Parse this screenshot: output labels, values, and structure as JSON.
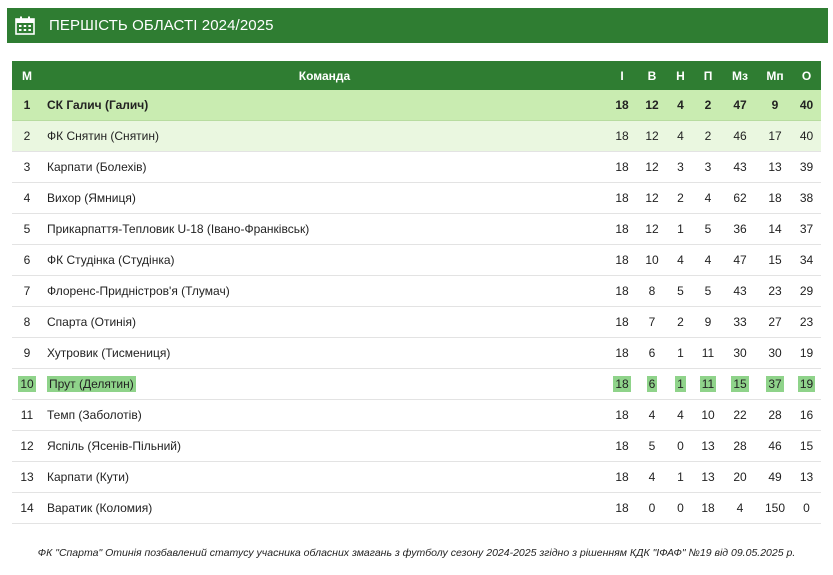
{
  "header": {
    "title": "ПЕРШІСТЬ ОБЛАСТІ 2024/2025",
    "icon": "calendar-icon"
  },
  "table": {
    "columns": [
      "М",
      "Команда",
      "І",
      "В",
      "Н",
      "П",
      "Мз",
      "Мп",
      "О"
    ],
    "rows": [
      {
        "pos": "1",
        "team": "СК Галич (Галич)",
        "g": "18",
        "w": "12",
        "d": "4",
        "l": "2",
        "gf": "47",
        "ga": "9",
        "pts": "40"
      },
      {
        "pos": "2",
        "team": "ФК Снятин (Снятин)",
        "g": "18",
        "w": "12",
        "d": "4",
        "l": "2",
        "gf": "46",
        "ga": "17",
        "pts": "40"
      },
      {
        "pos": "3",
        "team": "Карпати (Болехів)",
        "g": "18",
        "w": "12",
        "d": "3",
        "l": "3",
        "gf": "43",
        "ga": "13",
        "pts": "39"
      },
      {
        "pos": "4",
        "team": "Вихор (Ямниця)",
        "g": "18",
        "w": "12",
        "d": "2",
        "l": "4",
        "gf": "62",
        "ga": "18",
        "pts": "38"
      },
      {
        "pos": "5",
        "team": "Прикарпаття-Тепловик U-18 (Івано-Франківськ)",
        "g": "18",
        "w": "12",
        "d": "1",
        "l": "5",
        "gf": "36",
        "ga": "14",
        "pts": "37"
      },
      {
        "pos": "6",
        "team": "ФК Студінка (Студінка)",
        "g": "18",
        "w": "10",
        "d": "4",
        "l": "4",
        "gf": "47",
        "ga": "15",
        "pts": "34"
      },
      {
        "pos": "7",
        "team": "Флоренс-Придністров'я (Тлумач)",
        "g": "18",
        "w": "8",
        "d": "5",
        "l": "5",
        "gf": "43",
        "ga": "23",
        "pts": "29"
      },
      {
        "pos": "8",
        "team": "Спарта (Отинія)",
        "g": "18",
        "w": "7",
        "d": "2",
        "l": "9",
        "gf": "33",
        "ga": "27",
        "pts": "23"
      },
      {
        "pos": "9",
        "team": "Хутровик (Тисмениця)",
        "g": "18",
        "w": "6",
        "d": "1",
        "l": "11",
        "gf": "30",
        "ga": "30",
        "pts": "19"
      },
      {
        "pos": "10",
        "team": "Прут (Делятин)",
        "g": "18",
        "w": "6",
        "d": "1",
        "l": "11",
        "gf": "15",
        "ga": "37",
        "pts": "19"
      },
      {
        "pos": "11",
        "team": "Темп (Заболотів)",
        "g": "18",
        "w": "4",
        "d": "4",
        "l": "10",
        "gf": "22",
        "ga": "28",
        "pts": "16"
      },
      {
        "pos": "12",
        "team": "Яспіль (Ясенів-Пільний)",
        "g": "18",
        "w": "5",
        "d": "0",
        "l": "13",
        "gf": "28",
        "ga": "46",
        "pts": "15"
      },
      {
        "pos": "13",
        "team": "Карпати (Кути)",
        "g": "18",
        "w": "4",
        "d": "1",
        "l": "13",
        "gf": "20",
        "ga": "49",
        "pts": "13"
      },
      {
        "pos": "14",
        "team": "Варатик (Коломия)",
        "g": "18",
        "w": "0",
        "d": "0",
        "l": "18",
        "gf": "4",
        "ga": "150",
        "pts": "0"
      }
    ]
  },
  "colors": {
    "header_bg": "#2f7d32",
    "leader_bg": "#c9ecb1",
    "second_bg": "#eaf7e0",
    "highlight": "#8fd38a"
  },
  "footnote": "ФК \"Спарта\" Отинія позбавлений статусу учасника обласних змагань з футболу сезону 2024-2025 згідно з рішенням КДК \"ІФАФ\" №19 від 09.05.2025 р."
}
